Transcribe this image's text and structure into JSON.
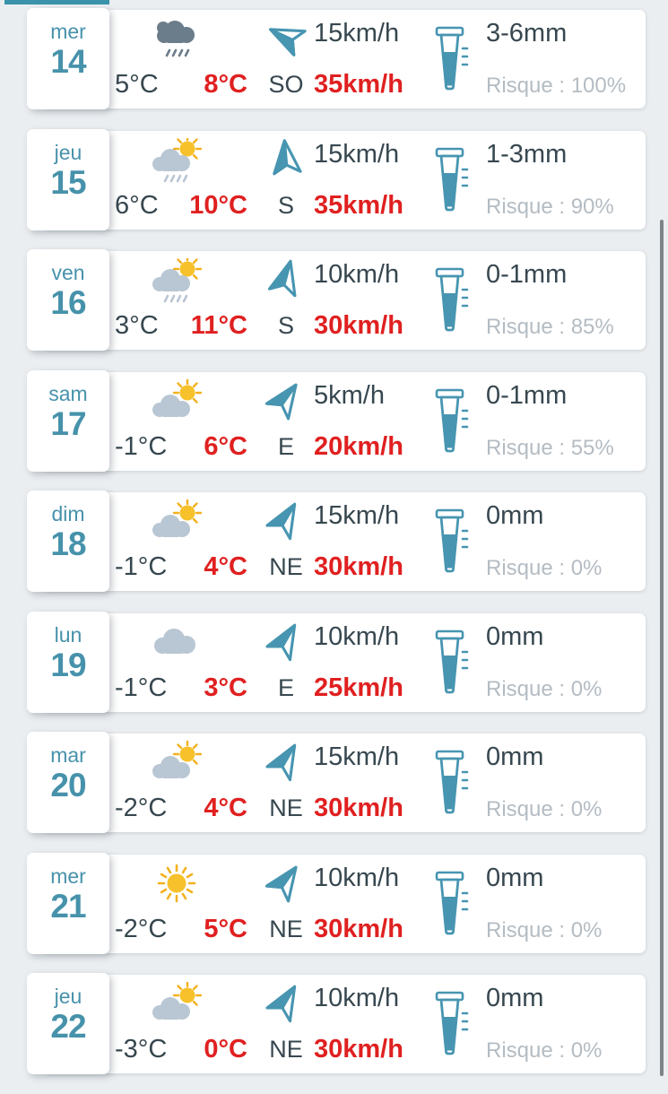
{
  "colors": {
    "background": "#ebeef1",
    "card": "#ffffff",
    "accent_teal": "#4792ab",
    "icon_teal": "#4795b1",
    "text_dark": "#37474f",
    "alert_red": "#e02020",
    "muted_grey": "#b4bcc3",
    "cloud_light": "#b9c6d3",
    "cloud_dark": "#6b7c8a",
    "sun_yellow": "#f6c12b",
    "sun_ray": "#f3b11e",
    "scrollbar_grey": "#7d8387",
    "top_bar_teal": "#3b93ab"
  },
  "icons": {
    "weather": "weather-icon",
    "wind_arrow": "wind-direction-arrow-icon",
    "rain_gauge": "rain-gauge-icon"
  },
  "rows": [
    {
      "day": "mer",
      "date": "14",
      "temp_min": "5°C",
      "temp_max": "8°C",
      "weather_icon": "storm-cloud-rain",
      "wind_direction": "SO",
      "wind_speed": "15km/h",
      "wind_gusts": "35km/h",
      "wind_arrow_rotation_deg": -65,
      "precipitation": "3-6mm",
      "risk": "Risque : 100%"
    },
    {
      "day": "jeu",
      "date": "15",
      "temp_min": "6°C",
      "temp_max": "10°C",
      "weather_icon": "sun-cloud-rain",
      "wind_direction": "S",
      "wind_speed": "15km/h",
      "wind_gusts": "35km/h",
      "wind_arrow_rotation_deg": -5,
      "precipitation": "1-3mm",
      "risk": "Risque : 90%"
    },
    {
      "day": "ven",
      "date": "16",
      "temp_min": "3°C",
      "temp_max": "11°C",
      "weather_icon": "sun-cloud-rain",
      "wind_direction": "S",
      "wind_speed": "10km/h",
      "wind_gusts": "30km/h",
      "wind_arrow_rotation_deg": 15,
      "precipitation": "0-1mm",
      "risk": "Risque : 85%"
    },
    {
      "day": "sam",
      "date": "17",
      "temp_min": "-1°C",
      "temp_max": "6°C",
      "weather_icon": "sun-cloud",
      "wind_direction": "E",
      "wind_speed": "5km/h",
      "wind_gusts": "20km/h",
      "wind_arrow_rotation_deg": 35,
      "precipitation": "0-1mm",
      "risk": "Risque : 55%"
    },
    {
      "day": "dim",
      "date": "18",
      "temp_min": "-1°C",
      "temp_max": "4°C",
      "weather_icon": "sun-cloud",
      "wind_direction": "NE",
      "wind_speed": "15km/h",
      "wind_gusts": "30km/h",
      "wind_arrow_rotation_deg": 30,
      "precipitation": "0mm",
      "risk": "Risque : 0%"
    },
    {
      "day": "lun",
      "date": "19",
      "temp_min": "-1°C",
      "temp_max": "3°C",
      "weather_icon": "cloud",
      "wind_direction": "E",
      "wind_speed": "10km/h",
      "wind_gusts": "25km/h",
      "wind_arrow_rotation_deg": 30,
      "precipitation": "0mm",
      "risk": "Risque : 0%"
    },
    {
      "day": "mar",
      "date": "20",
      "temp_min": "-2°C",
      "temp_max": "4°C",
      "weather_icon": "sun-cloud",
      "wind_direction": "NE",
      "wind_speed": "15km/h",
      "wind_gusts": "30km/h",
      "wind_arrow_rotation_deg": 30,
      "precipitation": "0mm",
      "risk": "Risque : 0%"
    },
    {
      "day": "mer",
      "date": "21",
      "temp_min": "-2°C",
      "temp_max": "5°C",
      "weather_icon": "sun",
      "wind_direction": "NE",
      "wind_speed": "10km/h",
      "wind_gusts": "30km/h",
      "wind_arrow_rotation_deg": 35,
      "precipitation": "0mm",
      "risk": "Risque : 0%"
    },
    {
      "day": "jeu",
      "date": "22",
      "temp_min": "-3°C",
      "temp_max": "0°C",
      "weather_icon": "sun-cloud",
      "wind_direction": "NE",
      "wind_speed": "10km/h",
      "wind_gusts": "30km/h",
      "wind_arrow_rotation_deg": 30,
      "precipitation": "0mm",
      "risk": "Risque : 0%"
    }
  ]
}
